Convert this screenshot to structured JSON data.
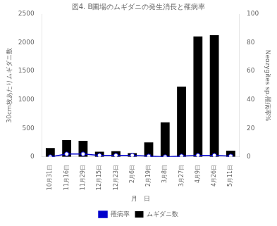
{
  "chart_data": {
    "type": "bar",
    "title": "図4. B圃場のムギダニの発生消長と罹病率",
    "xlabel": "月　日",
    "ylabel": "30cm枚あたりムギダニ数",
    "y2label": "Neozygites sp.罹病率%",
    "categories": [
      "10月31日",
      "11月16日",
      "11月29日",
      "12月15日",
      "12月23日",
      "2月6日",
      "2月19日",
      "3月8日",
      "3月27日",
      "4月9日",
      "4月26日",
      "5月11日"
    ],
    "series": [
      {
        "name": "ムギダニ数",
        "type": "bar",
        "color": "#000000",
        "values": [
          155,
          295,
          280,
          90,
          100,
          65,
          255,
          605,
          1230,
          2110,
          2130,
          110
        ]
      },
      {
        "name": "罹病率",
        "type": "line",
        "axis": "y2",
        "color": "#0000cc",
        "marker": "circle",
        "values": [
          0,
          2,
          2,
          1,
          1,
          1,
          0.5,
          0,
          0.5,
          1,
          1,
          0.5
        ]
      }
    ],
    "ylim": [
      0,
      2500
    ],
    "yticks": [
      0,
      500,
      1000,
      1500,
      2000,
      2500
    ],
    "y2lim": [
      0,
      100
    ],
    "y2ticks": [
      0,
      20,
      40,
      60,
      80,
      100
    ],
    "grid": false,
    "legend": "bottom"
  }
}
